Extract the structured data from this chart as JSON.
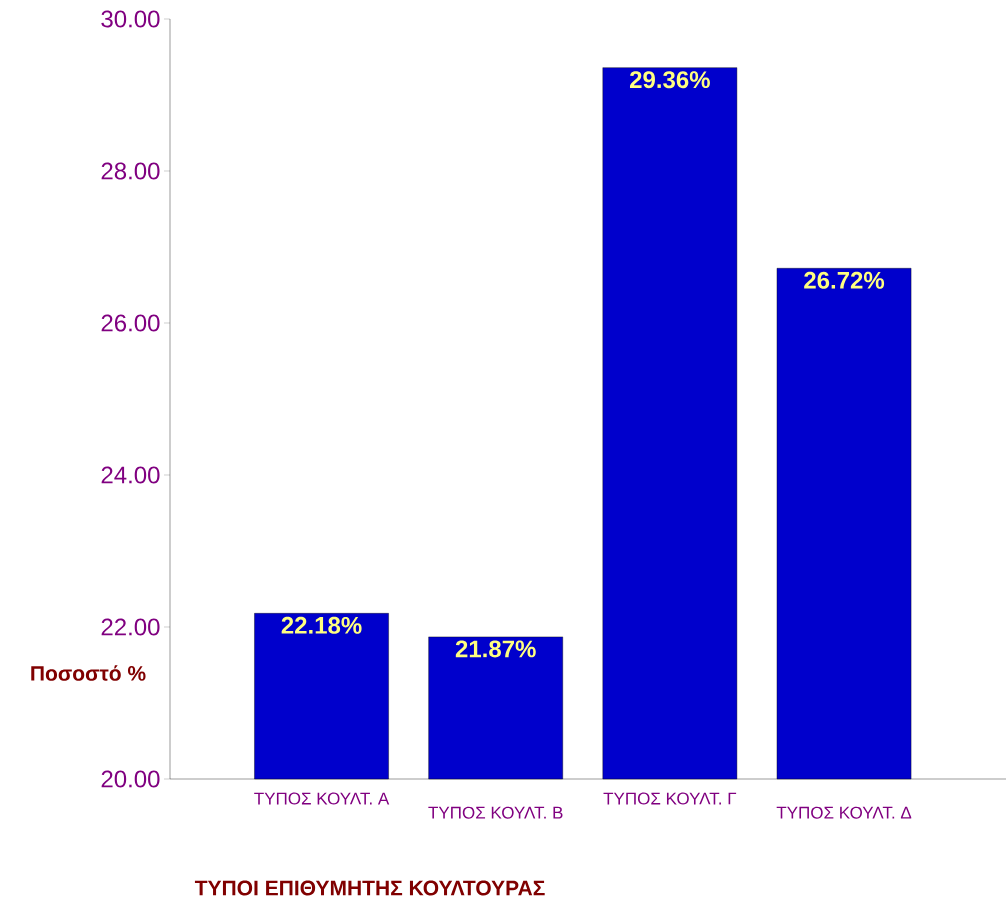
{
  "chart_data": {
    "type": "bar",
    "xlabel": "ΤΥΠΟΙ ΕΠΙΘΥΜΗΤΗΣ ΚΟΥΛΤΟΥΡΑΣ",
    "ylabel": "Ποσοστό %",
    "categories": [
      "ΤΥΠΟΣ ΚΟΥΛΤ. Α",
      "ΤΥΠΟΣ ΚΟΥΛΤ. Β",
      "ΤΥΠΟΣ ΚΟΥΛΤ. Γ",
      "ΤΥΠΟΣ ΚΟΥΛΤ. Δ"
    ],
    "values": [
      22.18,
      21.87,
      29.36,
      26.72
    ],
    "value_labels": [
      "22.18%",
      "21.87%",
      "29.36%",
      "26.72%"
    ],
    "color": "#0000cc",
    "ylim": [
      20,
      30
    ],
    "yticks": [
      {
        "value": 20,
        "label": "20.00"
      },
      {
        "value": 22,
        "label": "22.00"
      },
      {
        "value": 24,
        "label": "24.00"
      },
      {
        "value": 26,
        "label": "26.00"
      },
      {
        "value": 28,
        "label": "28.00"
      },
      {
        "value": 30,
        "label": "30.00"
      }
    ]
  }
}
